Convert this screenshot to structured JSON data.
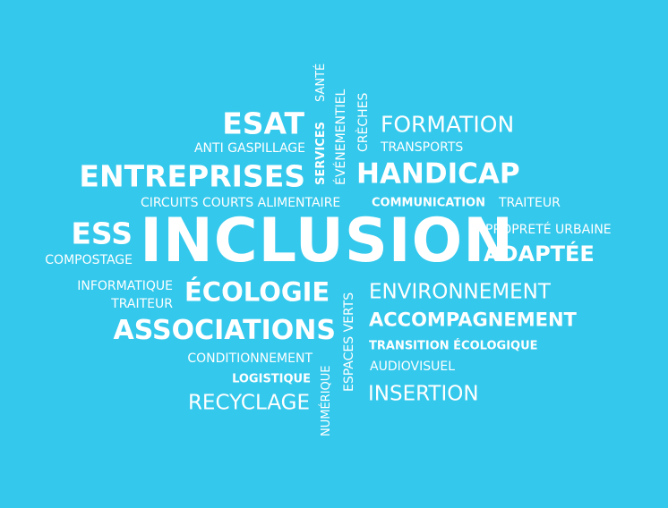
{
  "background_color": "#34c8ec",
  "text_color": "#ffffff",
  "words": {
    "esat": "ESAT",
    "anti_gaspillage": "ANTI GASPILLAGE",
    "entreprises": "ENTREPRISES",
    "circuits_courts": "CIRCUITS COURTS ALIMENTAIRE",
    "communication": "COMMUNICATION",
    "traiteur_right": "TRAITEUR",
    "ess": "ESS",
    "compostage": "COMPOSTAGE",
    "inclusion": "INCLUSION",
    "proprete_urbaine": "PROPRETÉ URBAINE",
    "adaptee": "ADAPTÉE",
    "formation": "FORMATION",
    "transports": "TRANSPORTS",
    "handicap": "HANDICAP",
    "informatique": "INFORMATIQUE",
    "traiteur_left": "TRAITEUR",
    "ecologie": "ÉCOLOGIE",
    "environnement": "ENVIRONNEMENT",
    "associations": "ASSOCIATIONS",
    "accompagnement": "ACCOMPAGNEMENT",
    "transition_ecologique": "TRANSITION ÉCOLOGIQUE",
    "conditionnement": "CONDITIONNEMENT",
    "logistique": "LOGISTIQUE",
    "audiovisuel": "AUDIOVISUEL",
    "recyclage": "RECYCLAGE",
    "insertion": "INSERTION",
    "services": "SERVICES",
    "sante": "SANTÉ",
    "evenementiel": "ÉVÉNEMENTIEL",
    "creches": "CRÈCHES",
    "numerique": "NUMÉRIQUE",
    "espaces_verts": "ESPACES VERTS"
  }
}
